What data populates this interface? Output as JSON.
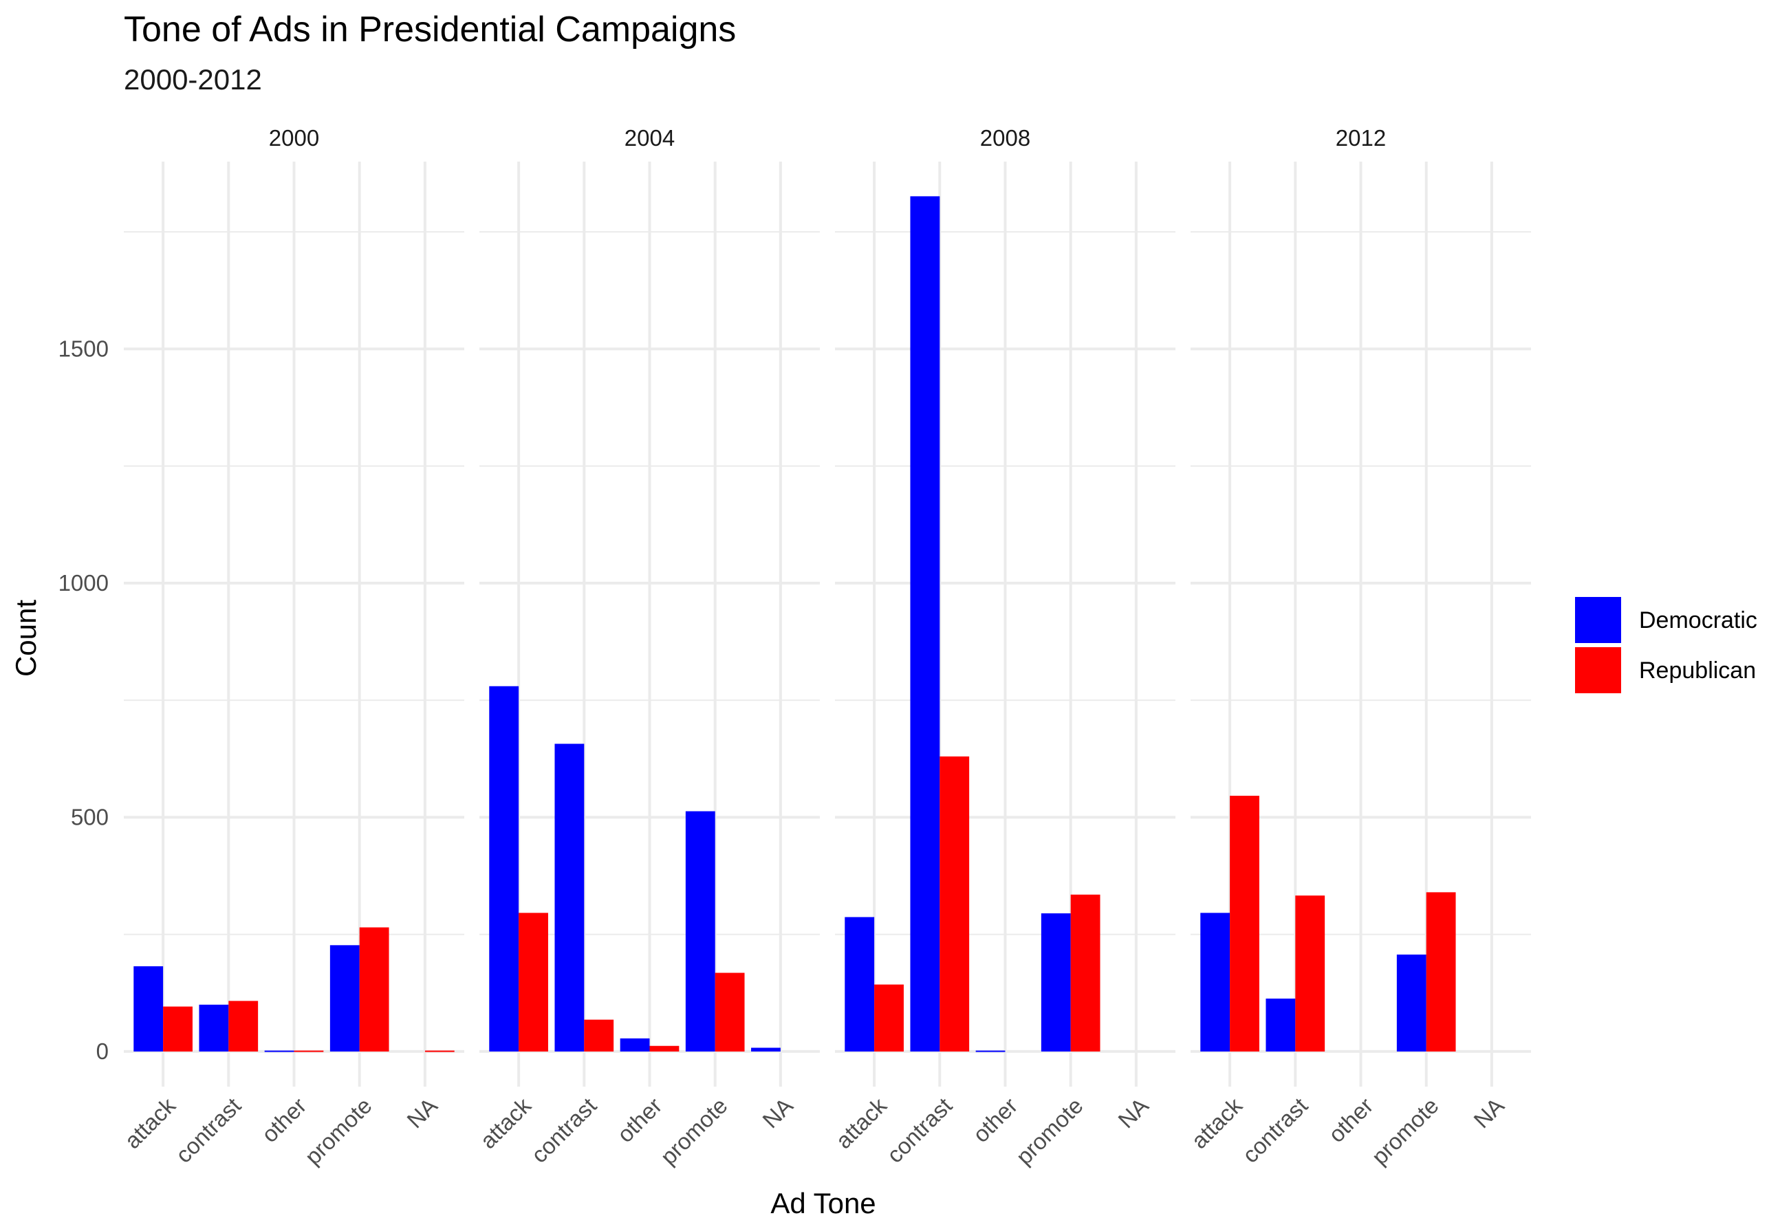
{
  "chart_data": {
    "type": "bar",
    "title": "Tone of Ads in Presidential Campaigns",
    "subtitle": "2000-2012",
    "xlabel": "Ad Tone",
    "ylabel": "Count",
    "ylim": [
      -75,
      1900
    ],
    "y_ticks": [
      0,
      500,
      1000,
      1500
    ],
    "grid": true,
    "legend_position": "right",
    "categories": [
      "attack",
      "contrast",
      "other",
      "promote",
      "NA"
    ],
    "colors": {
      "Democratic": "#0000ff",
      "Republican": "#ff0000"
    },
    "legend": [
      "Democratic",
      "Republican"
    ],
    "panels": [
      {
        "label": "2000",
        "series": [
          {
            "name": "Democratic",
            "values": [
              182,
              100,
              2,
              227,
              0
            ]
          },
          {
            "name": "Republican",
            "values": [
              96,
              108,
              2,
              265,
              2
            ]
          }
        ]
      },
      {
        "label": "2004",
        "series": [
          {
            "name": "Democratic",
            "values": [
              780,
              657,
              28,
              513,
              8
            ]
          },
          {
            "name": "Republican",
            "values": [
              296,
              68,
              12,
              168,
              0
            ]
          }
        ]
      },
      {
        "label": "2008",
        "series": [
          {
            "name": "Democratic",
            "values": [
              287,
              1826,
              2,
              295,
              0
            ]
          },
          {
            "name": "Republican",
            "values": [
              143,
              630,
              0,
              335,
              0
            ]
          }
        ]
      },
      {
        "label": "2012",
        "series": [
          {
            "name": "Democratic",
            "values": [
              296,
              113,
              0,
              207,
              0
            ]
          },
          {
            "name": "Republican",
            "values": [
              546,
              333,
              0,
              340,
              0
            ]
          }
        ]
      }
    ]
  }
}
